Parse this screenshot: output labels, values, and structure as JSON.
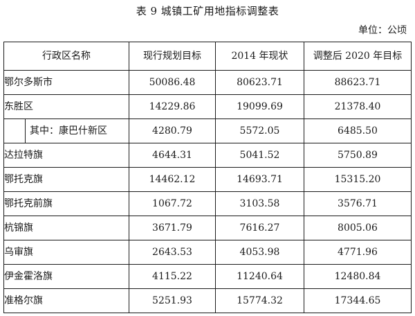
{
  "title": "表 9  城镇工矿用地指标调整表",
  "unit_label": "单位：公顷",
  "headers": [
    "行政区名称",
    "现行规划目标",
    "2014 年现状",
    "调整后 2020 年目标"
  ],
  "rows": [
    {
      "name": "鄂尔多斯市",
      "current_plan": "50086.48",
      "status_2014": "80623.71",
      "target_2020": "88623.71"
    },
    {
      "name": "东胜区",
      "current_plan": "14229.86",
      "status_2014": "19099.69",
      "target_2020": "21378.40"
    },
    {
      "name": "其中：康巴什新区",
      "current_plan": "4280.79",
      "status_2014": "5572.05",
      "target_2020": "6485.50"
    },
    {
      "name": "达拉特旗",
      "current_plan": "4644.31",
      "status_2014": "5041.52",
      "target_2020": "5750.89"
    },
    {
      "name": "鄂托克旗",
      "current_plan": "14462.12",
      "status_2014": "14693.71",
      "target_2020": "15315.20"
    },
    {
      "name": "鄂托克前旗",
      "current_plan": "1067.72",
      "status_2014": "3103.58",
      "target_2020": "3576.71"
    },
    {
      "name": "杭锦旗",
      "current_plan": "3671.79",
      "status_2014": "7616.27",
      "target_2020": "8005.06"
    },
    {
      "name": "乌审旗",
      "current_plan": "2643.53",
      "status_2014": "4053.98",
      "target_2020": "4771.96"
    },
    {
      "name": "伊金霍洛旗",
      "current_plan": "4115.22",
      "status_2014": "11240.64",
      "target_2020": "12480.84"
    },
    {
      "name": "准格尔旗",
      "current_plan": "5251.93",
      "status_2014": "15774.32",
      "target_2020": "17344.65"
    }
  ]
}
